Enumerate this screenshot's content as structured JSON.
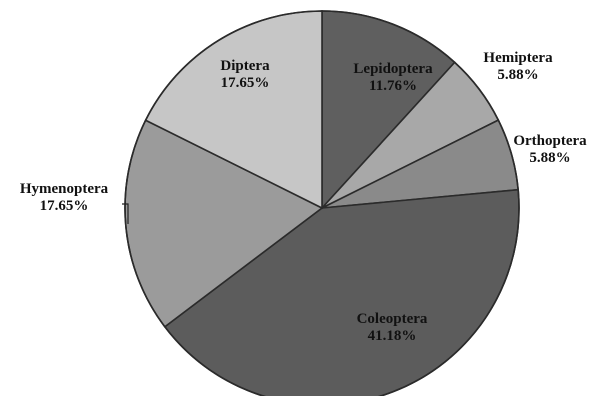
{
  "chart_data": {
    "type": "pie",
    "title": "",
    "start_angle_deg": 0,
    "direction": "clockwise",
    "categories": [
      "Lepidoptera",
      "Hemiptera",
      "Orthoptera",
      "Coleoptera",
      "Hymenoptera",
      "Diptera"
    ],
    "values": [
      11.76,
      5.88,
      5.88,
      41.18,
      17.65,
      17.65
    ],
    "value_labels": [
      "11.76%",
      "5.88%",
      "5.88%",
      "41.18%",
      "17.65%",
      "17.65%"
    ],
    "colors": [
      "#5f5f5f",
      "#a8a8a8",
      "#8a8a8a",
      "#5c5c5c",
      "#9b9b9b",
      "#c6c6c6"
    ],
    "border_color": "#2b2b2b",
    "legend": "none"
  }
}
